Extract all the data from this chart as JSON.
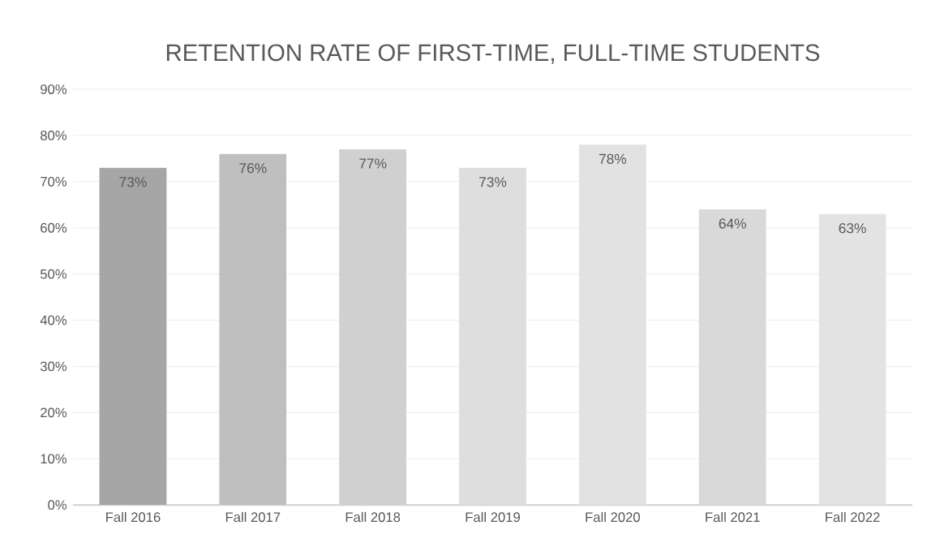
{
  "chart_data": {
    "type": "bar",
    "title": "RETENTION RATE OF FIRST-TIME, FULL-TIME STUDENTS",
    "categories": [
      "Fall 2016",
      "Fall 2017",
      "Fall 2018",
      "Fall 2019",
      "Fall 2020",
      "Fall 2021",
      "Fall 2022"
    ],
    "values": [
      73,
      76,
      77,
      73,
      78,
      64,
      63
    ],
    "value_labels": [
      "73%",
      "76%",
      "77%",
      "73%",
      "78%",
      "64%",
      "63%"
    ],
    "colors": [
      "#a6a6a6",
      "#bfbfbf",
      "#d0d0d0",
      "#dedede",
      "#e2e2e2",
      "#d9d9d9",
      "#e3e3e3"
    ],
    "ylim": [
      0,
      90
    ],
    "yticks": [
      {
        "value": 0,
        "label": "0%"
      },
      {
        "value": 10,
        "label": "10%"
      },
      {
        "value": 20,
        "label": "20%"
      },
      {
        "value": 30,
        "label": "30%"
      },
      {
        "value": 40,
        "label": "40%"
      },
      {
        "value": 50,
        "label": "50%"
      },
      {
        "value": 60,
        "label": "60%"
      },
      {
        "value": 70,
        "label": "70%"
      },
      {
        "value": 80,
        "label": "80%"
      },
      {
        "value": 90,
        "label": "90%"
      }
    ],
    "grid": "y"
  }
}
